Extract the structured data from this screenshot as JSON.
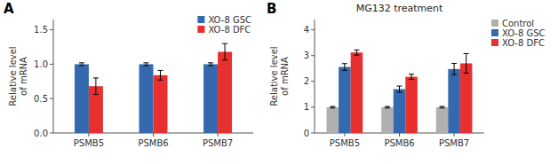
{
  "chart_data": [
    {
      "type": "bar",
      "annotations": [
        "A"
      ],
      "categories": [
        "PSMB5",
        "PSMB6",
        "PSMB7"
      ],
      "series": [
        {
          "name": "XO-8 GSC",
          "color": "#3469ae",
          "values": [
            1.0,
            1.0,
            1.0
          ],
          "errors": [
            0.02,
            0.02,
            0.02
          ]
        },
        {
          "name": "XO-8 DFC",
          "color": "#e83030",
          "values": [
            0.68,
            0.84,
            1.18
          ],
          "errors": [
            0.12,
            0.07,
            0.12
          ]
        }
      ],
      "ylabel": "Relative level\nof mRNA",
      "ylim": [
        0,
        1.65
      ],
      "yticks": [
        {
          "value": 0,
          "label": "0.0"
        },
        0.5,
        {
          "value": 1.0,
          "label": "1.0"
        },
        1.5
      ],
      "legend": "upper right",
      "grid": false
    },
    {
      "type": "bar",
      "title": "MG132 treatment",
      "annotations": [
        "B"
      ],
      "categories": [
        "PSMB5",
        "PSMB6",
        "PSMB7"
      ],
      "series": [
        {
          "name": "Control",
          "color": "#b0b0b0",
          "values": [
            1.0,
            1.0,
            1.0
          ],
          "errors": [
            0.03,
            0.03,
            0.03
          ]
        },
        {
          "name": "XO-8 GSC",
          "color": "#3469ae",
          "values": [
            2.56,
            1.7,
            2.48
          ],
          "errors": [
            0.13,
            0.12,
            0.22
          ]
        },
        {
          "name": "XO-8 DFC",
          "color": "#e83030",
          "values": [
            3.12,
            2.18,
            2.7
          ],
          "errors": [
            0.1,
            0.1,
            0.38
          ]
        }
      ],
      "ylabel": "Relative level\nof mRNA",
      "ylim": [
        0,
        4.4
      ],
      "yticks": [
        0,
        1,
        2,
        3,
        4
      ],
      "legend": "right",
      "grid": false
    }
  ]
}
